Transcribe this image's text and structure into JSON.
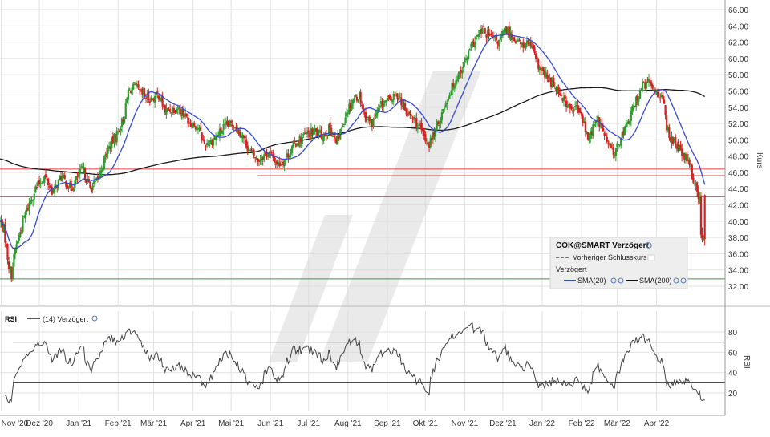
{
  "colors": {
    "up": "#2e9b2e",
    "down": "#d42020",
    "sma20": "#3548d8",
    "sma200": "#1a1a1a",
    "support": "#e04040",
    "floor": "#3a9a3a",
    "rsi_line": "#444444",
    "grid": "#e2e2e2",
    "watermark": "#d9d9d9"
  },
  "chart_data": [
    {
      "type": "candlestick",
      "title": "COK@SMART Verzögert",
      "ylabel": "Kurs",
      "ylim": [
        31,
        67
      ],
      "yticks": [
        "66.00",
        "64.00",
        "62.00",
        "60.00",
        "58.00",
        "56.00",
        "54.00",
        "52.00",
        "50.00",
        "48.00",
        "46.00",
        "44.00",
        "42.00",
        "40.00",
        "38.00",
        "36.00",
        "34.00",
        "32.00"
      ],
      "x_range": [
        "2020-10-31",
        "2022-05-25"
      ],
      "xtick_labels": [
        "Nov '20",
        "Dez '20",
        "Jan '21",
        "Feb '21",
        "Mär '21",
        "Apr '21",
        "Mai '21",
        "Jun '21",
        "Jul '21",
        "Aug '21",
        "Sep '21",
        "Okt '21",
        "Nov '21",
        "Dez '21",
        "Jan '22",
        "Feb '22",
        "Mär '22",
        "Apr '22"
      ],
      "xtick_dates": [
        "2020-11-01",
        "2020-12-01",
        "2021-01-01",
        "2021-02-01",
        "2021-03-01",
        "2021-04-01",
        "2021-05-01",
        "2021-06-01",
        "2021-07-01",
        "2021-08-01",
        "2021-09-01",
        "2021-10-01",
        "2021-11-01",
        "2021-12-01",
        "2022-01-01",
        "2022-02-01",
        "2022-03-01",
        "2022-04-01"
      ],
      "close_anchors": [
        [
          "2020-10-31",
          40.0
        ],
        [
          "2020-11-03",
          39.0
        ],
        [
          "2020-11-07",
          34.5
        ],
        [
          "2020-11-09",
          33.5
        ],
        [
          "2020-11-12",
          36.5
        ],
        [
          "2020-11-20",
          41.0
        ],
        [
          "2020-11-28",
          44.0
        ],
        [
          "2020-12-05",
          45.5
        ],
        [
          "2020-12-12",
          43.5
        ],
        [
          "2020-12-18",
          45.5
        ],
        [
          "2020-12-26",
          44.0
        ],
        [
          "2021-01-04",
          46.5
        ],
        [
          "2021-01-10",
          44.0
        ],
        [
          "2021-01-16",
          45.0
        ],
        [
          "2021-01-23",
          48.5
        ],
        [
          "2021-02-01",
          51.0
        ],
        [
          "2021-02-06",
          53.0
        ],
        [
          "2021-02-09",
          56.0
        ],
        [
          "2021-02-14",
          56.5
        ],
        [
          "2021-02-20",
          55.5
        ],
        [
          "2021-02-27",
          55.0
        ],
        [
          "2021-03-05",
          55.5
        ],
        [
          "2021-03-10",
          53.5
        ],
        [
          "2021-03-20",
          54.0
        ],
        [
          "2021-03-28",
          52.5
        ],
        [
          "2021-04-05",
          51.5
        ],
        [
          "2021-04-10",
          49.5
        ],
        [
          "2021-04-17",
          50.0
        ],
        [
          "2021-04-25",
          51.5
        ],
        [
          "2021-05-03",
          52.0
        ],
        [
          "2021-05-10",
          50.5
        ],
        [
          "2021-05-16",
          48.5
        ],
        [
          "2021-05-22",
          47.5
        ],
        [
          "2021-05-30",
          48.5
        ],
        [
          "2021-06-07",
          47.0
        ],
        [
          "2021-06-12",
          47.5
        ],
        [
          "2021-06-20",
          49.5
        ],
        [
          "2021-06-28",
          50.5
        ],
        [
          "2021-07-06",
          51.0
        ],
        [
          "2021-07-12",
          50.5
        ],
        [
          "2021-07-18",
          51.5
        ],
        [
          "2021-07-23",
          49.5
        ],
        [
          "2021-07-31",
          53.5
        ],
        [
          "2021-08-05",
          55.0
        ],
        [
          "2021-08-10",
          55.5
        ],
        [
          "2021-08-14",
          53.0
        ],
        [
          "2021-08-20",
          52.0
        ],
        [
          "2021-08-28",
          54.5
        ],
        [
          "2021-09-04",
          55.0
        ],
        [
          "2021-09-10",
          55.5
        ],
        [
          "2021-09-15",
          53.5
        ],
        [
          "2021-09-22",
          52.5
        ],
        [
          "2021-09-28",
          51.0
        ],
        [
          "2021-10-01",
          50.0
        ],
        [
          "2021-10-04",
          49.5
        ],
        [
          "2021-10-10",
          51.5
        ],
        [
          "2021-10-18",
          55.0
        ],
        [
          "2021-10-25",
          57.5
        ],
        [
          "2021-11-01",
          59.5
        ],
        [
          "2021-11-08",
          62.0
        ],
        [
          "2021-11-15",
          63.5
        ],
        [
          "2021-11-22",
          62.5
        ],
        [
          "2021-11-28",
          62.0
        ],
        [
          "2021-12-03",
          63.5
        ],
        [
          "2021-12-10",
          62.5
        ],
        [
          "2021-12-16",
          61.5
        ],
        [
          "2021-12-22",
          62.0
        ],
        [
          "2021-12-29",
          59.0
        ],
        [
          "2022-01-05",
          57.5
        ],
        [
          "2022-01-12",
          56.5
        ],
        [
          "2022-01-18",
          55.0
        ],
        [
          "2022-01-24",
          53.5
        ],
        [
          "2022-01-28",
          54.0
        ],
        [
          "2022-02-02",
          52.5
        ],
        [
          "2022-02-06",
          50.0
        ],
        [
          "2022-02-10",
          51.5
        ],
        [
          "2022-02-14",
          52.5
        ],
        [
          "2022-02-18",
          51.0
        ],
        [
          "2022-02-23",
          49.0
        ],
        [
          "2022-02-28",
          48.5
        ],
        [
          "2022-03-04",
          50.5
        ],
        [
          "2022-03-08",
          51.5
        ],
        [
          "2022-03-14",
          54.0
        ],
        [
          "2022-03-20",
          56.5
        ],
        [
          "2022-03-26",
          57.0
        ],
        [
          "2022-04-01",
          56.0
        ],
        [
          "2022-04-06",
          55.0
        ],
        [
          "2022-04-09",
          51.5
        ],
        [
          "2022-04-13",
          50.0
        ],
        [
          "2022-04-18",
          49.0
        ],
        [
          "2022-04-22",
          48.0
        ],
        [
          "2022-04-27",
          47.0
        ],
        [
          "2022-04-30",
          45.0
        ],
        [
          "2022-05-02",
          44.5
        ],
        [
          "2022-05-05",
          42.5
        ],
        [
          "2022-05-06",
          38.0
        ],
        [
          "2022-05-09",
          37.5
        ]
      ],
      "horizontal_lines": [
        {
          "value": 46.4,
          "from": "2020-10-31"
        },
        {
          "value": 45.6,
          "from": "2021-05-22"
        },
        {
          "value": 43.0,
          "from": "2020-10-31"
        },
        {
          "value": 42.6,
          "from": "2020-12-12"
        },
        {
          "value": 32.9,
          "from": "2020-10-31",
          "color": "floor"
        }
      ],
      "legend": {
        "title": "COK@SMART Verzögert",
        "prev_close": "Vorheriger Schlusskurs",
        "group": "Verzögert",
        "sma20": "SMA(20)",
        "sma200": "SMA(200)",
        "placement": "bottom-right"
      }
    },
    {
      "type": "line",
      "title": "RSI",
      "ylabel": "RSI",
      "series_label": "(14) Verzögert",
      "ylim": [
        5,
        92
      ],
      "yticks": [
        "80",
        "60",
        "40",
        "20"
      ],
      "hlines": [
        70,
        30
      ]
    }
  ]
}
